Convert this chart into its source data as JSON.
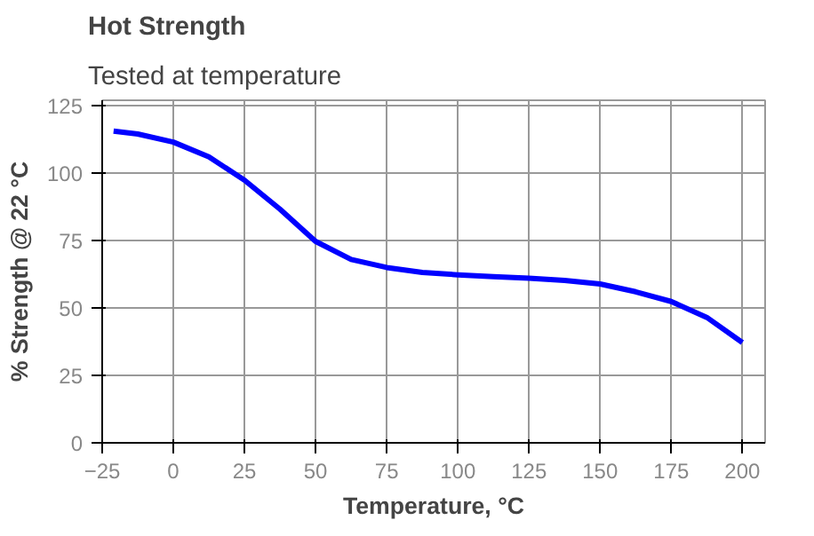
{
  "chart_data": {
    "type": "line",
    "title": "Hot Strength",
    "subtitle": "Tested at temperature",
    "xlabel": "Temperature, °C",
    "ylabel": "% Strength @ 22 °C",
    "x": [
      -21,
      -12.5,
      0,
      12.5,
      25,
      37.5,
      50,
      62.5,
      75,
      87.5,
      100,
      112.5,
      125,
      137.5,
      150,
      162.5,
      175,
      187.5,
      200
    ],
    "series": [
      {
        "color": "#0000ff",
        "values": [
          115.6,
          114.5,
          111.5,
          106,
          97.4,
          86.6,
          74.7,
          68,
          65,
          63.2,
          62.3,
          61.6,
          61,
          60.2,
          58.9,
          56,
          52.4,
          46.5,
          37.2
        ]
      }
    ],
    "xlim": [
      -25,
      208
    ],
    "ylim": [
      0,
      127
    ],
    "xticks": [
      -25,
      0,
      25,
      50,
      75,
      100,
      125,
      150,
      175,
      200
    ],
    "yticks": [
      0,
      25,
      50,
      75,
      100,
      125
    ],
    "grid": true,
    "marker": "none",
    "line_style": "solid"
  }
}
